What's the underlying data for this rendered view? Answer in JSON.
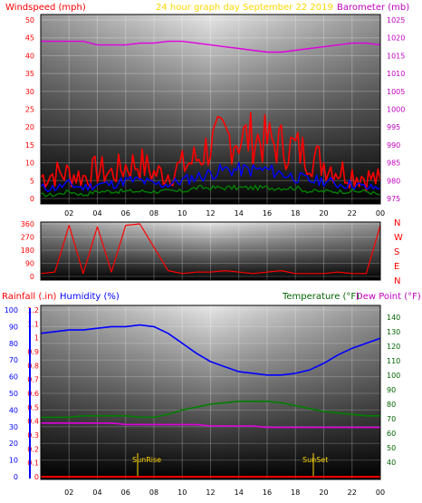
{
  "header": {
    "left_label": "Windspeed (mph)",
    "center_label": "24 hour graph day   September 22 2019",
    "right_label": "Barometer (mb)"
  },
  "colors": {
    "red": "#ff0000",
    "blue": "#0000ff",
    "green": "#008000",
    "magenta": "#e000e0",
    "yellow": "#ffd700",
    "black": "#000000",
    "purple": "#c000c0",
    "darkgreen": "#006400"
  },
  "lower_header": {
    "rainfall_label": "Rainfall (.in)",
    "humidity_label": "Humidity (%)",
    "temperature_label": "Temperature (°F)",
    "dewpoint_label": "Dew Point (°F)"
  },
  "direction_labels": [
    "N",
    "W",
    "S",
    "E",
    "N"
  ],
  "annotations": {
    "sunrise": "SunRise",
    "sunset": "SunSet"
  },
  "chart_data": [
    {
      "type": "line",
      "name": "wind-barometer",
      "x": [
        0,
        1,
        2,
        3,
        4,
        5,
        6,
        7,
        8,
        9,
        10,
        11,
        12,
        13,
        14,
        15,
        16,
        17,
        18,
        19,
        20,
        21,
        22,
        23,
        24
      ],
      "xticklabels": [
        "02",
        "04",
        "06",
        "08",
        "10",
        "12",
        "14",
        "16",
        "18",
        "20",
        "22",
        "00"
      ],
      "ylim_left": [
        0,
        50
      ],
      "yticks_left": [
        0,
        5,
        10,
        15,
        20,
        25,
        30,
        35,
        40,
        45,
        50
      ],
      "ylim_right": [
        975,
        1025
      ],
      "yticks_right": [
        975,
        980,
        985,
        990,
        995,
        1000,
        1005,
        1010,
        1015,
        1020,
        1025
      ],
      "series": [
        {
          "axis": "left",
          "color": "red",
          "values": [
            6,
            7,
            7,
            6,
            8,
            7,
            9,
            10,
            7,
            7,
            9,
            11,
            15,
            17,
            17,
            17,
            16,
            15,
            14,
            12,
            10,
            8,
            7,
            6,
            5
          ]
        },
        {
          "axis": "left",
          "color": "blue",
          "values": [
            3,
            3,
            4,
            3,
            4,
            4,
            5,
            5,
            4,
            4,
            5,
            6,
            7,
            8,
            8,
            8,
            8,
            7,
            6,
            5,
            5,
            4,
            4,
            3,
            3
          ]
        },
        {
          "axis": "left",
          "color": "green",
          "values": [
            1,
            1,
            2,
            1,
            2,
            2,
            2,
            2,
            2,
            2,
            2,
            3,
            3,
            3,
            3,
            3,
            3,
            3,
            3,
            2,
            2,
            2,
            2,
            2,
            1
          ]
        },
        {
          "axis": "right",
          "color": "magenta",
          "values": [
            1019,
            1019,
            1019,
            1019,
            1018,
            1018,
            1018,
            1018.5,
            1018.5,
            1019,
            1019,
            1018.5,
            1018,
            1017.5,
            1017,
            1016.5,
            1016,
            1016,
            1016.5,
            1017,
            1017.5,
            1018,
            1018.5,
            1018.5,
            1018
          ]
        }
      ]
    },
    {
      "type": "line",
      "name": "wind-direction",
      "x": [
        0,
        1,
        2,
        3,
        4,
        5,
        6,
        7,
        8,
        9,
        10,
        11,
        12,
        13,
        14,
        15,
        16,
        17,
        18,
        19,
        20,
        21,
        22,
        23,
        24
      ],
      "ylim": [
        0,
        360
      ],
      "yticks": [
        0,
        90,
        180,
        270,
        360
      ],
      "series": [
        {
          "color": "red",
          "values": [
            20,
            30,
            350,
            20,
            340,
            30,
            350,
            360,
            200,
            40,
            20,
            30,
            30,
            40,
            30,
            20,
            30,
            40,
            20,
            20,
            20,
            30,
            20,
            20,
            350
          ]
        }
      ]
    },
    {
      "type": "line",
      "name": "rain-humidity-temperature",
      "x": [
        0,
        1,
        2,
        3,
        4,
        5,
        6,
        7,
        8,
        9,
        10,
        11,
        12,
        13,
        14,
        15,
        16,
        17,
        18,
        19,
        20,
        21,
        22,
        23,
        24
      ],
      "ylim_humidity": [
        0,
        100
      ],
      "yticks_humidity": [
        0,
        10,
        20,
        30,
        40,
        50,
        60,
        70,
        80,
        90,
        100
      ],
      "ylim_rain": [
        0,
        1.2
      ],
      "yticks_rain": [
        0,
        0.1,
        0.2,
        0.3,
        0.4,
        0.5,
        0.6,
        0.7,
        0.8,
        0.9,
        1,
        1.1,
        1.2
      ],
      "ylim_temp": [
        30,
        145
      ],
      "yticks_temp": [
        40,
        50,
        60,
        70,
        80,
        90,
        100,
        110,
        120,
        130,
        140
      ],
      "series": [
        {
          "axis": "humidity",
          "color": "blue",
          "values": [
            86,
            87,
            88,
            88,
            89,
            90,
            90,
            91,
            90,
            86,
            80,
            74,
            69,
            66,
            63,
            62,
            61,
            61,
            62,
            64,
            68,
            73,
            77,
            80,
            83
          ]
        },
        {
          "axis": "temp",
          "color": "green",
          "values": [
            71,
            71,
            71,
            72,
            72,
            72,
            72,
            71,
            71,
            73,
            76,
            78,
            80,
            81,
            82,
            82,
            82,
            81,
            79,
            77,
            75,
            74,
            73,
            72,
            72
          ]
        },
        {
          "axis": "temp",
          "color": "magenta",
          "values": [
            67,
            67,
            67,
            67,
            67,
            67,
            66,
            66,
            66,
            66,
            66,
            66,
            65,
            65,
            65,
            65,
            64,
            64,
            64,
            64,
            64,
            64,
            64,
            64,
            64
          ]
        },
        {
          "axis": "rain",
          "color": "red",
          "values": [
            0,
            0,
            0,
            0,
            0,
            0,
            0,
            0,
            0,
            0,
            0,
            0,
            0,
            0,
            0,
            0,
            0,
            0,
            0,
            0,
            0,
            0,
            0,
            0,
            0
          ]
        }
      ]
    }
  ]
}
